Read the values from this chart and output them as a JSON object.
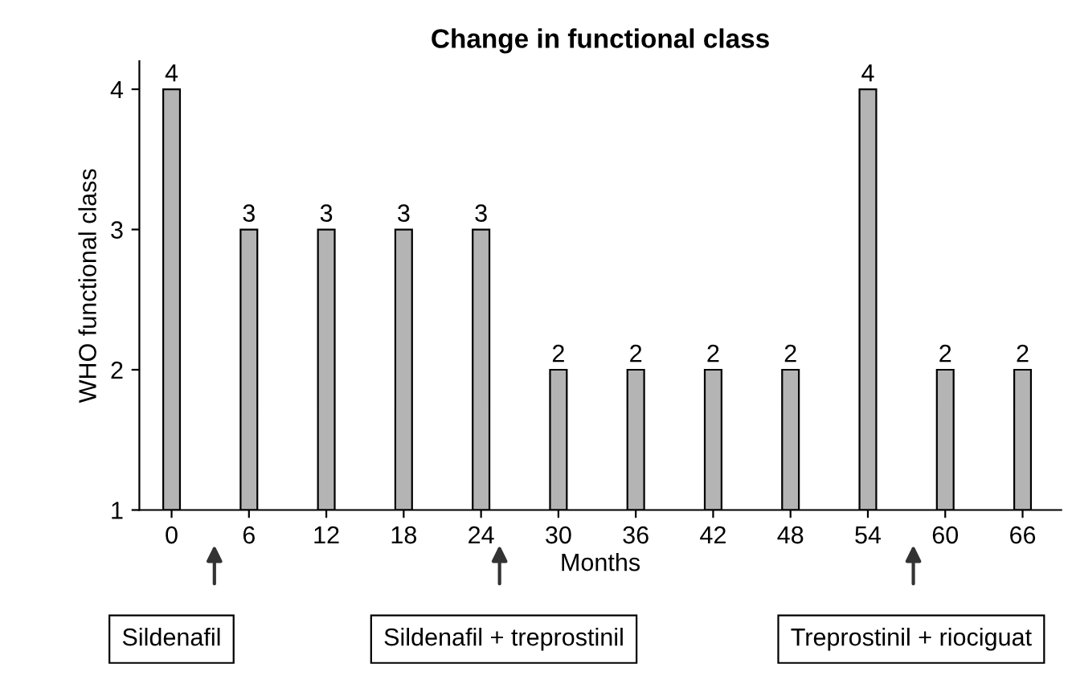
{
  "chart_data": {
    "type": "bar",
    "title": "Change in functional class",
    "xlabel": "Months",
    "ylabel": "WHO functional class",
    "x": [
      0,
      6,
      12,
      18,
      24,
      30,
      36,
      42,
      48,
      54,
      60,
      66
    ],
    "values": [
      4,
      3,
      3,
      3,
      3,
      2,
      2,
      2,
      2,
      4,
      2,
      2
    ],
    "color": "#b4b4b4",
    "data_labels": true,
    "xlim": [
      -2.5,
      69
    ],
    "xticks": [
      0,
      6,
      12,
      18,
      24,
      30,
      36,
      42,
      48,
      54,
      60,
      66
    ],
    "ylim": [
      1,
      4.2
    ],
    "yticks": [
      1,
      2,
      3,
      4
    ],
    "grid": false,
    "annotations": [
      "Sildenafil",
      "Sildenafil + treprostinil",
      "Treprostinil + riociguat"
    ]
  }
}
